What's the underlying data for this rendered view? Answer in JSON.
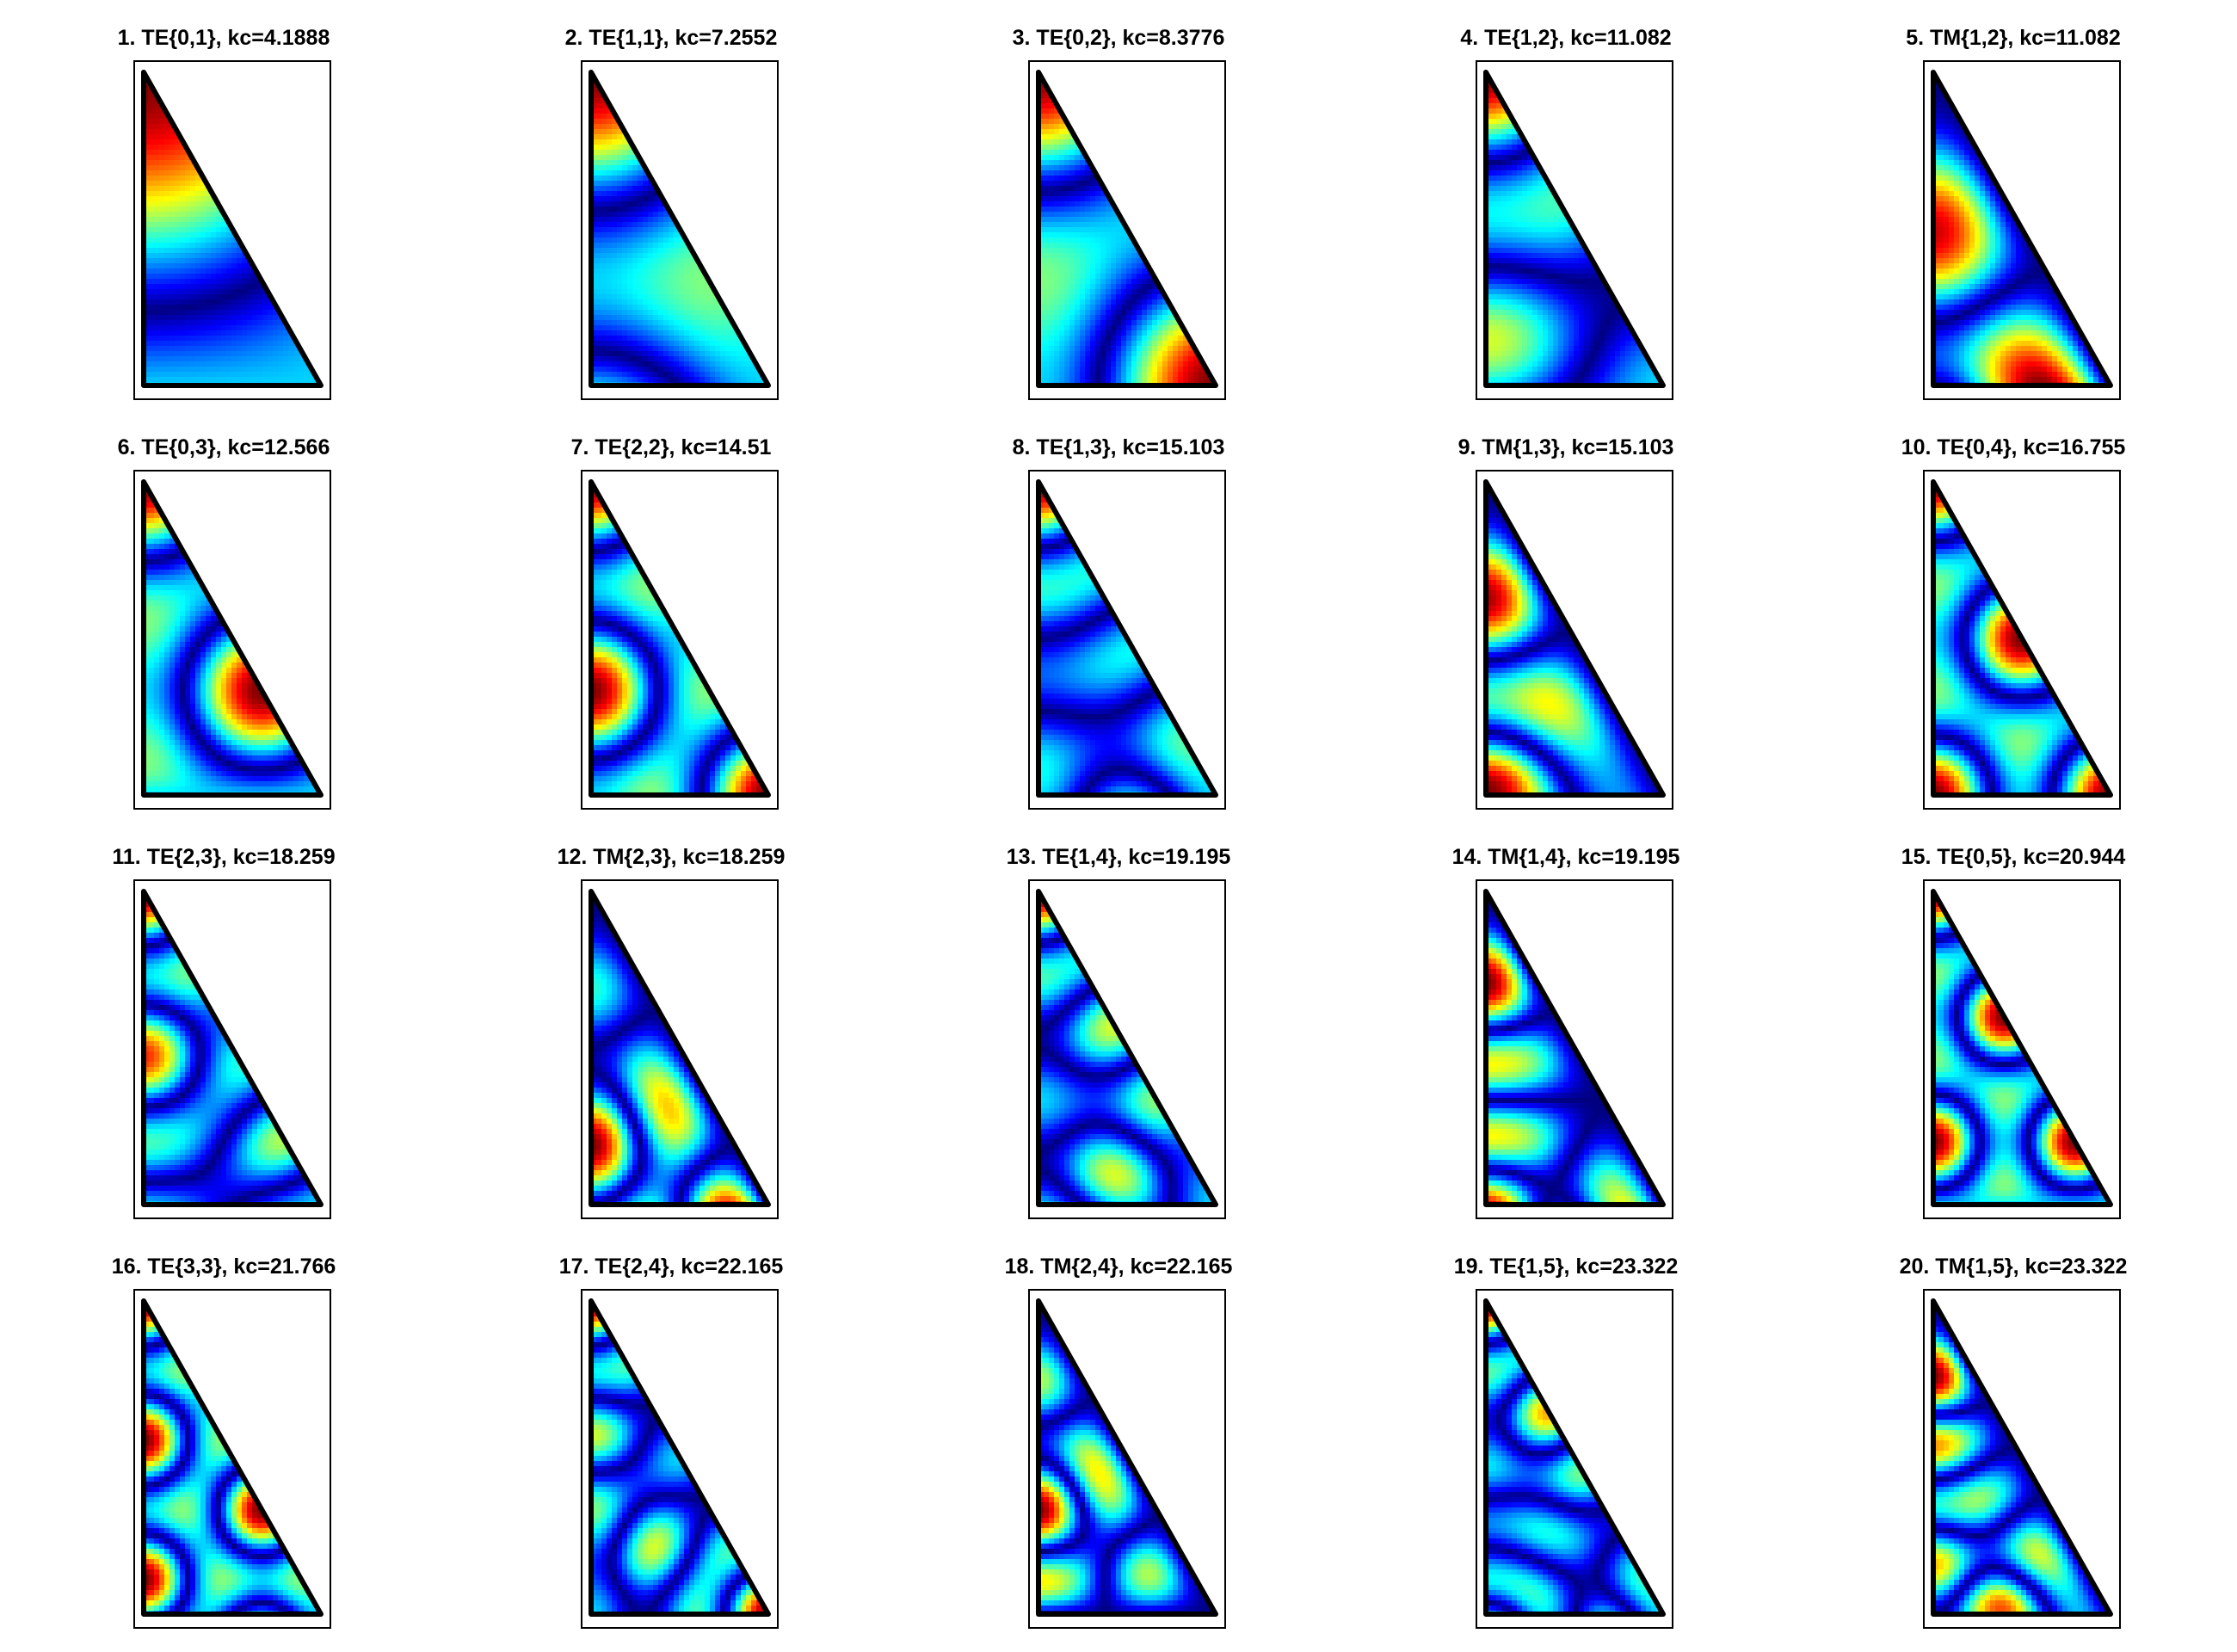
{
  "figure": {
    "colormap": "jet",
    "panels": [
      {
        "index": 1,
        "title": "1. TE{0,1}, kc=4.1888",
        "mode": "TE",
        "m": 0,
        "n": 1,
        "kc": 4.1888
      },
      {
        "index": 2,
        "title": "2. TE{1,1}, kc=7.2552",
        "mode": "TE",
        "m": 1,
        "n": 1,
        "kc": 7.2552
      },
      {
        "index": 3,
        "title": "3. TE{0,2}, kc=8.3776",
        "mode": "TE",
        "m": 0,
        "n": 2,
        "kc": 8.3776
      },
      {
        "index": 4,
        "title": "4. TE{1,2}, kc=11.082",
        "mode": "TE",
        "m": 1,
        "n": 2,
        "kc": 11.082
      },
      {
        "index": 5,
        "title": "5. TM{1,2}, kc=11.082",
        "mode": "TM",
        "m": 1,
        "n": 2,
        "kc": 11.082
      },
      {
        "index": 6,
        "title": "6. TE{0,3}, kc=12.566",
        "mode": "TE",
        "m": 0,
        "n": 3,
        "kc": 12.566
      },
      {
        "index": 7,
        "title": "7. TE{2,2}, kc=14.51",
        "mode": "TE",
        "m": 2,
        "n": 2,
        "kc": 14.51
      },
      {
        "index": 8,
        "title": "8. TE{1,3}, kc=15.103",
        "mode": "TE",
        "m": 1,
        "n": 3,
        "kc": 15.103
      },
      {
        "index": 9,
        "title": "9. TM{1,3}, kc=15.103",
        "mode": "TM",
        "m": 1,
        "n": 3,
        "kc": 15.103
      },
      {
        "index": 10,
        "title": "10. TE{0,4}, kc=16.755",
        "mode": "TE",
        "m": 0,
        "n": 4,
        "kc": 16.755
      },
      {
        "index": 11,
        "title": "11. TE{2,3}, kc=18.259",
        "mode": "TE",
        "m": 2,
        "n": 3,
        "kc": 18.259
      },
      {
        "index": 12,
        "title": "12. TM{2,3}, kc=18.259",
        "mode": "TM",
        "m": 2,
        "n": 3,
        "kc": 18.259
      },
      {
        "index": 13,
        "title": "13. TE{1,4}, kc=19.195",
        "mode": "TE",
        "m": 1,
        "n": 4,
        "kc": 19.195
      },
      {
        "index": 14,
        "title": "14. TM{1,4}, kc=19.195",
        "mode": "TM",
        "m": 1,
        "n": 4,
        "kc": 19.195
      },
      {
        "index": 15,
        "title": "15. TE{0,5}, kc=20.944",
        "mode": "TE",
        "m": 0,
        "n": 5,
        "kc": 20.944
      },
      {
        "index": 16,
        "title": "16. TE{3,3}, kc=21.766",
        "mode": "TE",
        "m": 3,
        "n": 3,
        "kc": 21.766
      },
      {
        "index": 17,
        "title": "17. TE{2,4}, kc=22.165",
        "mode": "TE",
        "m": 2,
        "n": 4,
        "kc": 22.165
      },
      {
        "index": 18,
        "title": "18. TM{2,4}, kc=22.165",
        "mode": "TM",
        "m": 2,
        "n": 4,
        "kc": 22.165
      },
      {
        "index": 19,
        "title": "19. TE{1,5}, kc=23.322",
        "mode": "TE",
        "m": 1,
        "n": 5,
        "kc": 23.322
      },
      {
        "index": 20,
        "title": "20. TM{1,5}, kc=23.322",
        "mode": "TM",
        "m": 1,
        "n": 5,
        "kc": 23.322
      }
    ]
  }
}
